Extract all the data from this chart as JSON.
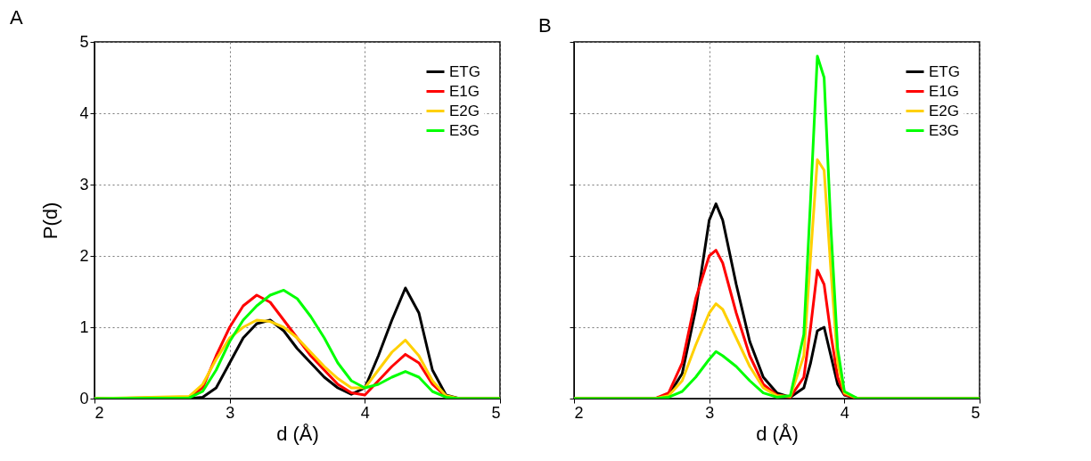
{
  "chart_data": [
    {
      "type": "line",
      "title": "A",
      "xlabel": "d (Å)",
      "ylabel": "P(d)",
      "xlim": [
        2,
        5
      ],
      "xticks": [
        2,
        3,
        4,
        5
      ],
      "ylim": [
        0,
        5
      ],
      "yticks": [
        0,
        1,
        2,
        3,
        4,
        5
      ],
      "grid": true,
      "legend": "top right",
      "x": [
        2,
        2.7,
        2.8,
        2.9,
        3.0,
        3.1,
        3.2,
        3.3,
        3.4,
        3.5,
        3.6,
        3.7,
        3.8,
        3.9,
        4.0,
        4.1,
        4.2,
        4.3,
        4.4,
        4.5,
        4.6,
        4.7,
        5
      ],
      "series": [
        {
          "name": "ETG",
          "color": "#000000",
          "values": [
            0,
            0,
            0.02,
            0.15,
            0.5,
            0.85,
            1.05,
            1.1,
            0.95,
            0.7,
            0.5,
            0.3,
            0.15,
            0.06,
            0.15,
            0.6,
            1.1,
            1.55,
            1.2,
            0.4,
            0.05,
            0,
            0
          ]
        },
        {
          "name": "E1G",
          "color": "#ff0000",
          "values": [
            0,
            0.02,
            0.15,
            0.6,
            1.0,
            1.3,
            1.45,
            1.35,
            1.1,
            0.85,
            0.6,
            0.4,
            0.2,
            0.08,
            0.05,
            0.25,
            0.45,
            0.62,
            0.5,
            0.2,
            0.03,
            0,
            0
          ]
        },
        {
          "name": "E2G",
          "color": "#ffd000",
          "values": [
            0,
            0.03,
            0.2,
            0.55,
            0.85,
            1.0,
            1.1,
            1.08,
            1.0,
            0.85,
            0.65,
            0.45,
            0.28,
            0.15,
            0.15,
            0.4,
            0.65,
            0.82,
            0.6,
            0.25,
            0.04,
            0,
            0
          ]
        },
        {
          "name": "E3G",
          "color": "#00ff00",
          "values": [
            0,
            0.01,
            0.1,
            0.4,
            0.8,
            1.1,
            1.3,
            1.45,
            1.52,
            1.4,
            1.15,
            0.85,
            0.5,
            0.25,
            0.15,
            0.2,
            0.3,
            0.38,
            0.3,
            0.1,
            0.02,
            0,
            0
          ]
        }
      ]
    },
    {
      "type": "line",
      "title": "B",
      "xlabel": "d (Å)",
      "xlim": [
        2,
        5
      ],
      "xticks": [
        2,
        3,
        4,
        5
      ],
      "ylim": [
        0,
        5
      ],
      "yticks": [
        0,
        1,
        2,
        3,
        4,
        5
      ],
      "grid": true,
      "legend": "top right",
      "tick_labels": "x",
      "x": [
        2,
        2.6,
        2.7,
        2.8,
        2.9,
        3.0,
        3.05,
        3.1,
        3.2,
        3.3,
        3.4,
        3.5,
        3.6,
        3.7,
        3.75,
        3.8,
        3.85,
        3.9,
        3.95,
        4.0,
        4.1,
        5
      ],
      "series": [
        {
          "name": "ETG",
          "color": "#000000",
          "values": [
            0,
            0,
            0.05,
            0.35,
            1.25,
            2.5,
            2.73,
            2.5,
            1.6,
            0.8,
            0.3,
            0.08,
            0.02,
            0.15,
            0.5,
            0.95,
            1.0,
            0.6,
            0.2,
            0.05,
            0,
            0
          ]
        },
        {
          "name": "E1G",
          "color": "#ff0000",
          "values": [
            0,
            0,
            0.08,
            0.5,
            1.4,
            2.0,
            2.08,
            1.9,
            1.2,
            0.6,
            0.2,
            0.05,
            0.02,
            0.3,
            1.0,
            1.8,
            1.6,
            0.9,
            0.3,
            0.06,
            0,
            0
          ]
        },
        {
          "name": "E2G",
          "color": "#ffd000",
          "values": [
            0,
            0,
            0.04,
            0.25,
            0.75,
            1.2,
            1.33,
            1.25,
            0.85,
            0.45,
            0.15,
            0.04,
            0.03,
            0.6,
            2.0,
            3.35,
            3.2,
            1.8,
            0.5,
            0.08,
            0,
            0
          ]
        },
        {
          "name": "E3G",
          "color": "#00ff00",
          "values": [
            0,
            0,
            0.02,
            0.1,
            0.3,
            0.55,
            0.66,
            0.6,
            0.45,
            0.25,
            0.08,
            0.02,
            0.04,
            0.9,
            2.8,
            4.8,
            4.5,
            2.4,
            0.7,
            0.1,
            0,
            0
          ]
        }
      ]
    }
  ]
}
